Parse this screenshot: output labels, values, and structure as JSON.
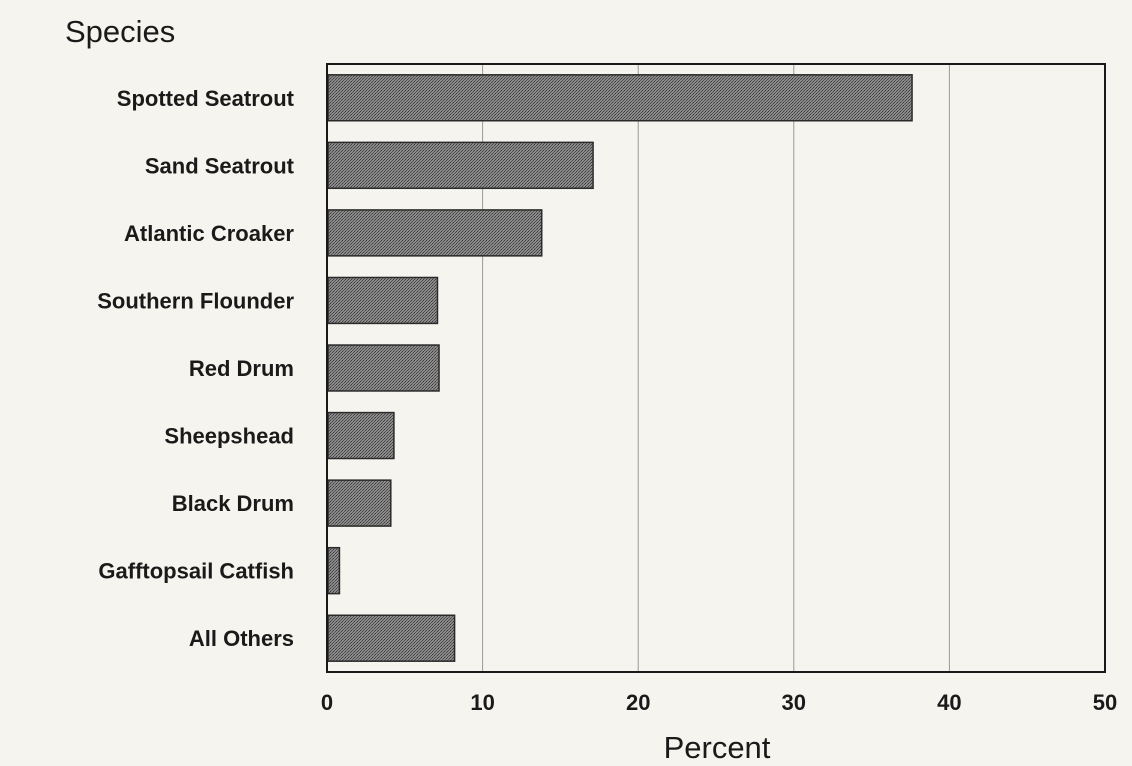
{
  "chart_data": {
    "type": "bar",
    "orientation": "horizontal",
    "title": "Species",
    "xlabel": "Percent",
    "ylabel": "",
    "xlim": [
      0,
      50
    ],
    "xticks": [
      0,
      10,
      20,
      30,
      40,
      50
    ],
    "grid": "vertical",
    "categories": [
      "Spotted Seatrout",
      "Sand Seatrout",
      "Atlantic Croaker",
      "Southern Flounder",
      "Red Drum",
      "Sheepshead",
      "Black Drum",
      "Gafftopsail Catfish",
      "All Others"
    ],
    "values": [
      37.6,
      17.1,
      13.8,
      7.1,
      7.2,
      4.3,
      4.1,
      0.8,
      8.2
    ],
    "colors": {
      "bar_fill": "#6e6e6e",
      "bar_stroke": "#2a2a2a",
      "axis": "#1a1a1a",
      "grid": "#9a9a9a"
    }
  }
}
